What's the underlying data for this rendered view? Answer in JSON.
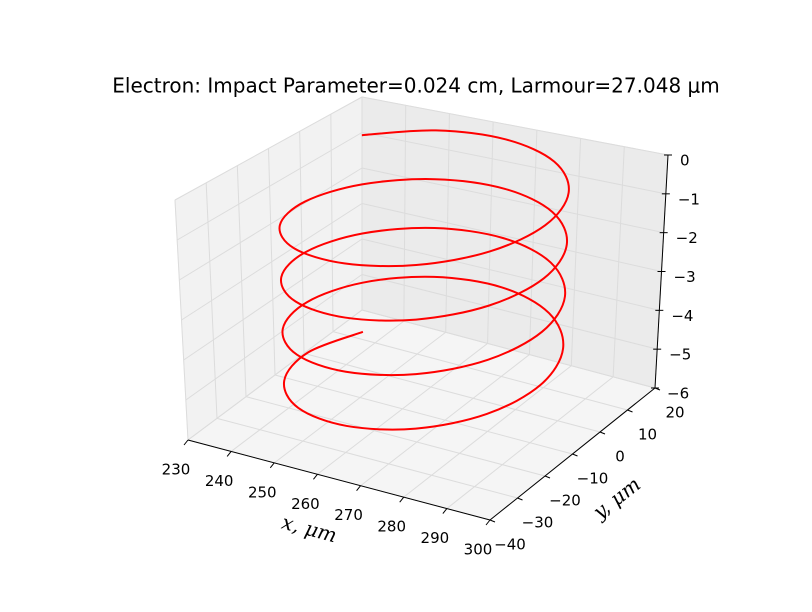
{
  "chart_data": {
    "type": "line3d",
    "title": "Electron: Impact Parameter=0.024 cm, Larmour=27.048 μm",
    "xlabel": "x, μm",
    "ylabel": "y, μm",
    "color": "#ff0000",
    "title_color": "#bf00bf",
    "grid": true,
    "x": [
      241.57,
      251.48,
      265,
      278.52,
      288.43,
      292.05,
      288.43,
      278.52,
      265,
      251.48,
      241.57,
      237.95,
      241.57,
      251.48,
      265,
      278.52,
      288.43,
      292.05,
      288.43,
      278.52,
      265,
      251.48,
      241.57,
      237.95,
      241.57,
      251.48,
      265,
      278.52,
      288.43,
      292.05,
      288.43,
      278.52,
      265,
      251.48,
      241.57,
      237.95,
      241.57,
      251.48,
      265,
      278.52,
      288.43,
      292.05,
      288.43,
      278.52,
      265,
      251.48,
      241.57,
      237.95,
      241.57
    ],
    "y": [
      3.52,
      13.43,
      17.05,
      13.43,
      3.52,
      -10,
      -23.52,
      -33.43,
      -37.05,
      -33.43,
      -23.52,
      -10,
      3.52,
      13.43,
      17.05,
      13.43,
      3.52,
      -10,
      -23.52,
      -33.43,
      -37.05,
      -33.43,
      -23.52,
      -10,
      3.52,
      13.43,
      17.05,
      13.43,
      3.52,
      -10,
      -23.52,
      -33.43,
      -37.05,
      -33.43,
      -23.52,
      -10,
      3.52,
      13.43,
      17.05,
      13.43,
      3.52,
      -10,
      -23.52,
      -33.43,
      -37.05,
      -33.43,
      -23.52,
      -10,
      3.52
    ],
    "z": [
      0,
      -0.11,
      -0.22,
      -0.33,
      -0.44,
      -0.55,
      -0.66,
      -0.77,
      -0.88,
      -0.99,
      -1.1,
      -1.21,
      -1.32,
      -1.43,
      -1.54,
      -1.65,
      -1.76,
      -1.87,
      -1.98,
      -2.09,
      -2.2,
      -2.31,
      -2.42,
      -2.53,
      -2.64,
      -2.75,
      -2.86,
      -2.97,
      -3.08,
      -3.19,
      -3.3,
      -3.41,
      -3.52,
      -3.63,
      -3.74,
      -3.85,
      -3.96,
      -4.07,
      -4.18,
      -4.29,
      -4.4,
      -4.51,
      -4.62,
      -4.73,
      -4.84,
      -4.95,
      -5.06,
      -5.17,
      -5.28
    ],
    "xlim": [
      230,
      300
    ],
    "xticks": [
      230,
      240,
      250,
      260,
      270,
      280,
      290,
      300
    ],
    "ylim": [
      -40,
      20
    ],
    "yticks": [
      {
        "value": -40,
        "label": "−40"
      },
      {
        "value": -30,
        "label": "−30"
      },
      {
        "value": -20,
        "label": "−20"
      },
      {
        "value": -10,
        "label": "−10"
      },
      0,
      10,
      20
    ],
    "zlim": [
      -6,
      0
    ],
    "zticks": [
      {
        "value": -6,
        "label": "−6"
      },
      {
        "value": -5,
        "label": "−5"
      },
      {
        "value": -4,
        "label": "−4"
      },
      {
        "value": -3,
        "label": "−3"
      },
      {
        "value": -2,
        "label": "−2"
      },
      {
        "value": -1,
        "label": "−1"
      },
      0
    ]
  }
}
